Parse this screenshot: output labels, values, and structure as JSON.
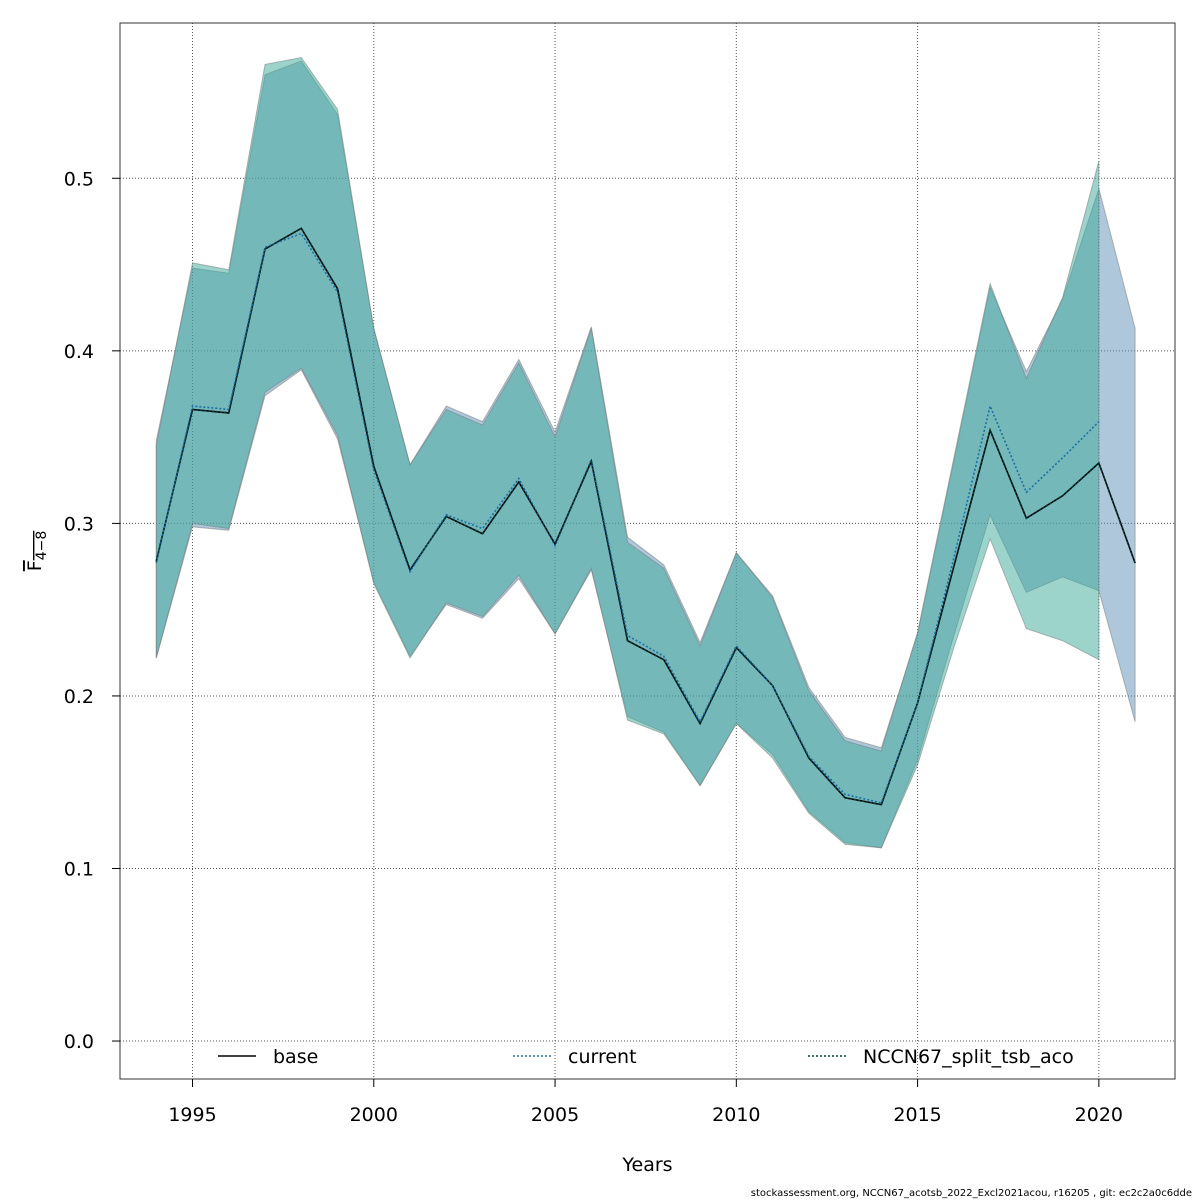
{
  "chart_data": {
    "type": "line",
    "xlabel": "Years",
    "ylabel_main": "F",
    "ylabel_sub": "4−8",
    "xlim": [
      1993.0,
      2022.1
    ],
    "ylim": [
      -0.022,
      0.59
    ],
    "x_ticks": [
      1995,
      2000,
      2005,
      2010,
      2015,
      2020
    ],
    "y_ticks": [
      0.0,
      0.1,
      0.2,
      0.3,
      0.4,
      0.5
    ],
    "y_tick_labels": [
      "0.0",
      "0.1",
      "0.2",
      "0.3",
      "0.4",
      "0.5"
    ],
    "grid": true,
    "legend_position": "bottom",
    "series": [
      {
        "name": "base",
        "color": "#000000",
        "linestyle": "solid",
        "band_color": "#5e8fb5",
        "x": [
          1994,
          1995,
          1996,
          1997,
          1998,
          1999,
          2000,
          2001,
          2002,
          2003,
          2004,
          2005,
          2006,
          2007,
          2008,
          2009,
          2010,
          2011,
          2012,
          2013,
          2014,
          2015,
          2016,
          2017,
          2018,
          2019,
          2020,
          2021
        ],
        "y": [
          0.278,
          0.366,
          0.364,
          0.459,
          0.471,
          0.436,
          0.333,
          0.273,
          0.304,
          0.294,
          0.324,
          0.288,
          0.336,
          0.232,
          0.221,
          0.184,
          0.228,
          0.206,
          0.164,
          0.141,
          0.137,
          0.196,
          0.275,
          0.354,
          0.303,
          0.316,
          0.335,
          0.277
        ],
        "lower": [
          0.222,
          0.298,
          0.296,
          0.374,
          0.389,
          0.349,
          0.266,
          0.223,
          0.253,
          0.245,
          0.268,
          0.236,
          0.273,
          0.188,
          0.179,
          0.148,
          0.184,
          0.166,
          0.133,
          0.115,
          0.112,
          0.163,
          0.235,
          0.305,
          0.26,
          0.269,
          0.261,
          0.185
        ],
        "upper": [
          0.348,
          0.448,
          0.445,
          0.56,
          0.568,
          0.537,
          0.413,
          0.334,
          0.368,
          0.359,
          0.395,
          0.353,
          0.414,
          0.292,
          0.276,
          0.231,
          0.283,
          0.258,
          0.205,
          0.176,
          0.17,
          0.236,
          0.336,
          0.437,
          0.388,
          0.43,
          0.494,
          0.413
        ]
      },
      {
        "name": "current",
        "color": "#1f6fa8",
        "linestyle": "dotted",
        "band_color": "#3aaa98",
        "x": [
          1994,
          1995,
          1996,
          1997,
          1998,
          1999,
          2000,
          2001,
          2002,
          2003,
          2004,
          2005,
          2006,
          2007,
          2008,
          2009,
          2010,
          2011,
          2012,
          2013,
          2014,
          2015,
          2016,
          2017,
          2018,
          2019,
          2020
        ],
        "y": [
          0.277,
          0.368,
          0.366,
          0.46,
          0.468,
          0.434,
          0.331,
          0.272,
          0.305,
          0.297,
          0.326,
          0.287,
          0.337,
          0.235,
          0.223,
          0.185,
          0.229,
          0.206,
          0.165,
          0.143,
          0.138,
          0.196,
          0.28,
          0.368,
          0.318,
          0.338,
          0.359
        ],
        "lower": [
          0.222,
          0.3,
          0.297,
          0.376,
          0.39,
          0.351,
          0.265,
          0.222,
          0.254,
          0.246,
          0.27,
          0.236,
          0.274,
          0.186,
          0.178,
          0.148,
          0.184,
          0.164,
          0.132,
          0.114,
          0.112,
          0.16,
          0.228,
          0.291,
          0.239,
          0.232,
          0.221
        ],
        "upper": [
          0.345,
          0.451,
          0.447,
          0.566,
          0.57,
          0.54,
          0.413,
          0.334,
          0.366,
          0.357,
          0.393,
          0.35,
          0.413,
          0.289,
          0.274,
          0.229,
          0.283,
          0.257,
          0.203,
          0.174,
          0.168,
          0.237,
          0.338,
          0.439,
          0.384,
          0.431,
          0.51
        ]
      },
      {
        "name": "NCCN67_split_tsb_aco",
        "color": "#0a3a3a",
        "linestyle": "dotted",
        "band_color": "#3aaa98",
        "x": [
          1994,
          1995,
          1996,
          1997,
          1998,
          1999,
          2000,
          2001,
          2002,
          2003,
          2004,
          2005,
          2006,
          2007,
          2008,
          2009,
          2010,
          2011,
          2012,
          2013,
          2014,
          2015,
          2016,
          2017,
          2018,
          2019,
          2020,
          2021
        ],
        "y": [
          0.278,
          0.366,
          0.364,
          0.459,
          0.471,
          0.436,
          0.333,
          0.273,
          0.304,
          0.294,
          0.324,
          0.288,
          0.336,
          0.232,
          0.221,
          0.184,
          0.228,
          0.206,
          0.164,
          0.141,
          0.137,
          0.196,
          0.275,
          0.354,
          0.303,
          0.316,
          0.335,
          0.277
        ]
      }
    ]
  },
  "footer_text": "stockassessment.org, NCCN67_acotsb_2022_Excl2021acou, r16205 , git: ec2c2a0c6dde"
}
